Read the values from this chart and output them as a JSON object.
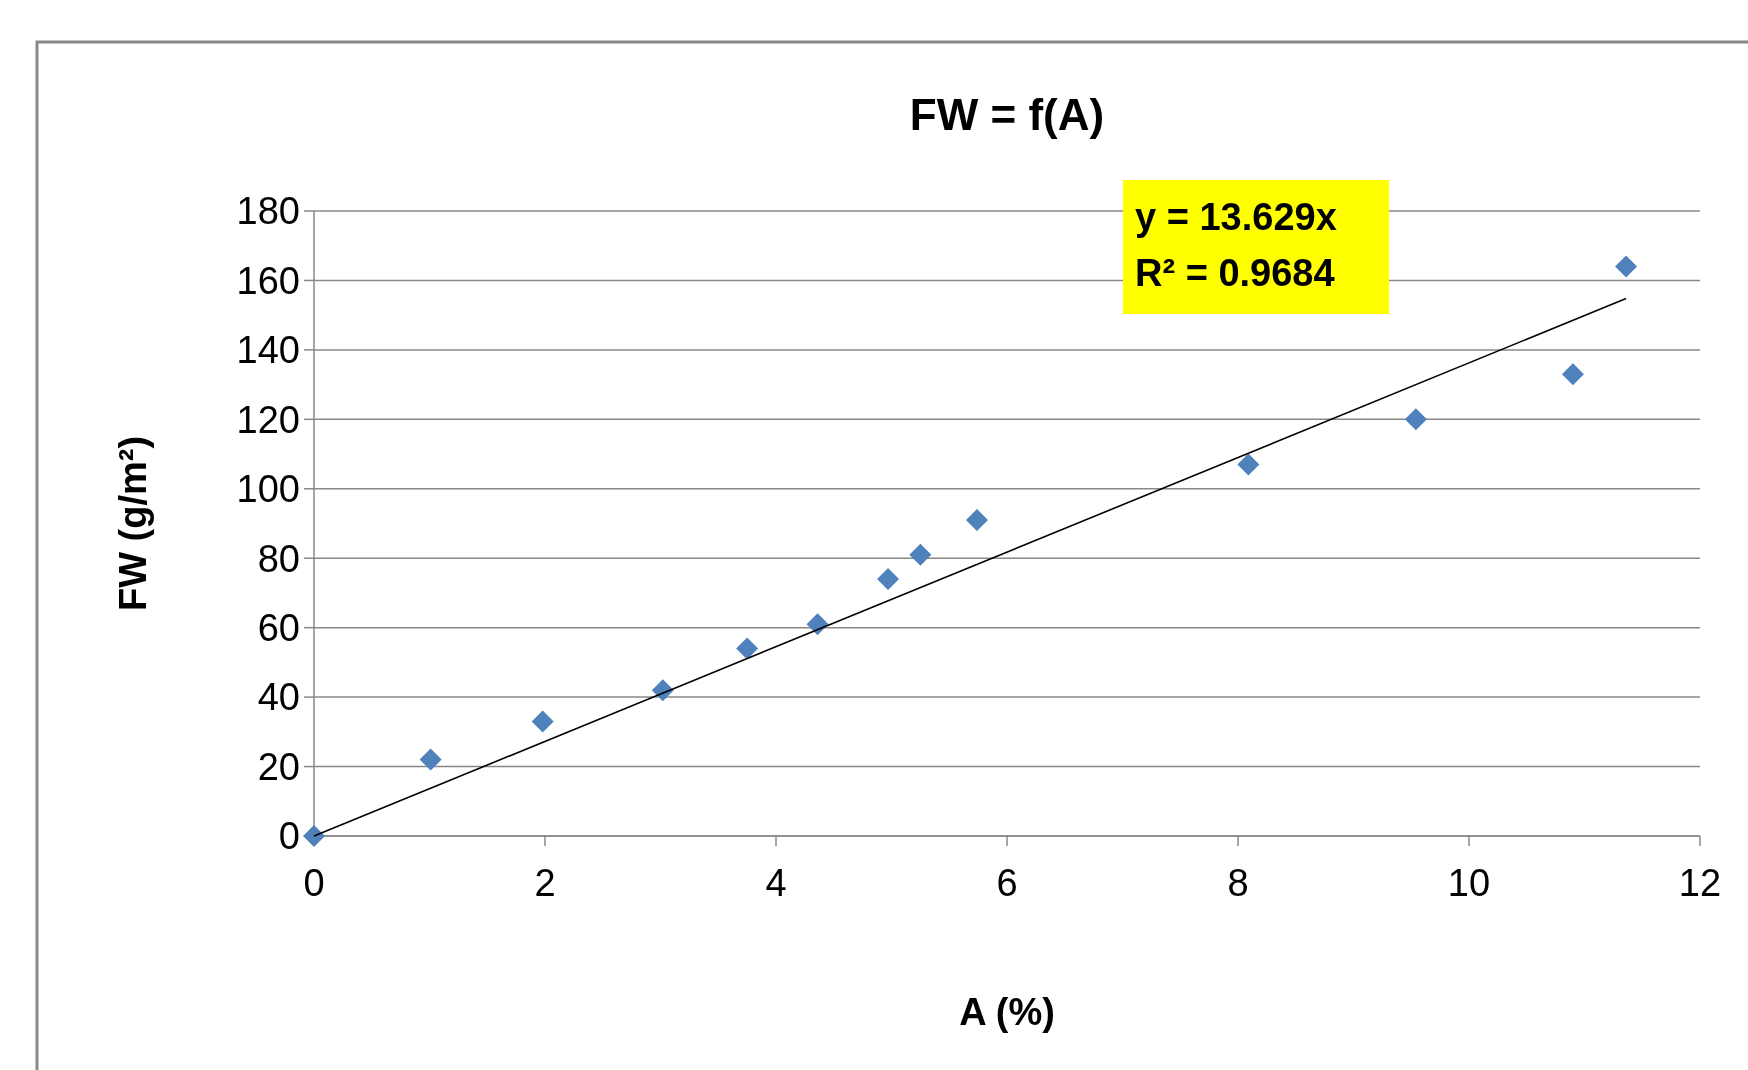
{
  "chart_data": {
    "type": "scatter",
    "title": "FW = f(A)",
    "xlabel": "A (%)",
    "ylabel": "FW (g/m²)",
    "xlim": [
      0,
      12
    ],
    "ylim": [
      0,
      180
    ],
    "xticks": [
      0,
      2,
      4,
      6,
      8,
      10,
      12
    ],
    "yticks": [
      0,
      20,
      40,
      60,
      80,
      100,
      120,
      140,
      160,
      180
    ],
    "grid": "y",
    "series": [
      {
        "color": "#4f81bd",
        "marker": "diamond",
        "x": [
          0,
          1.01,
          1.98,
          3.02,
          3.75,
          4.36,
          4.97,
          5.25,
          5.74,
          8.09,
          9.54,
          10.9,
          11.36
        ],
        "values": [
          0,
          22,
          33,
          42,
          54,
          61,
          74,
          81,
          91,
          107,
          120,
          133,
          164
        ]
      },
      {
        "type": "line",
        "color": "#000000",
        "marker": "none",
        "line_style": "solid",
        "x": [
          0,
          11.36
        ],
        "values": [
          0,
          154.8
        ]
      }
    ],
    "annotations": [
      "y = 13.629x",
      "R² = 0.9684"
    ]
  }
}
